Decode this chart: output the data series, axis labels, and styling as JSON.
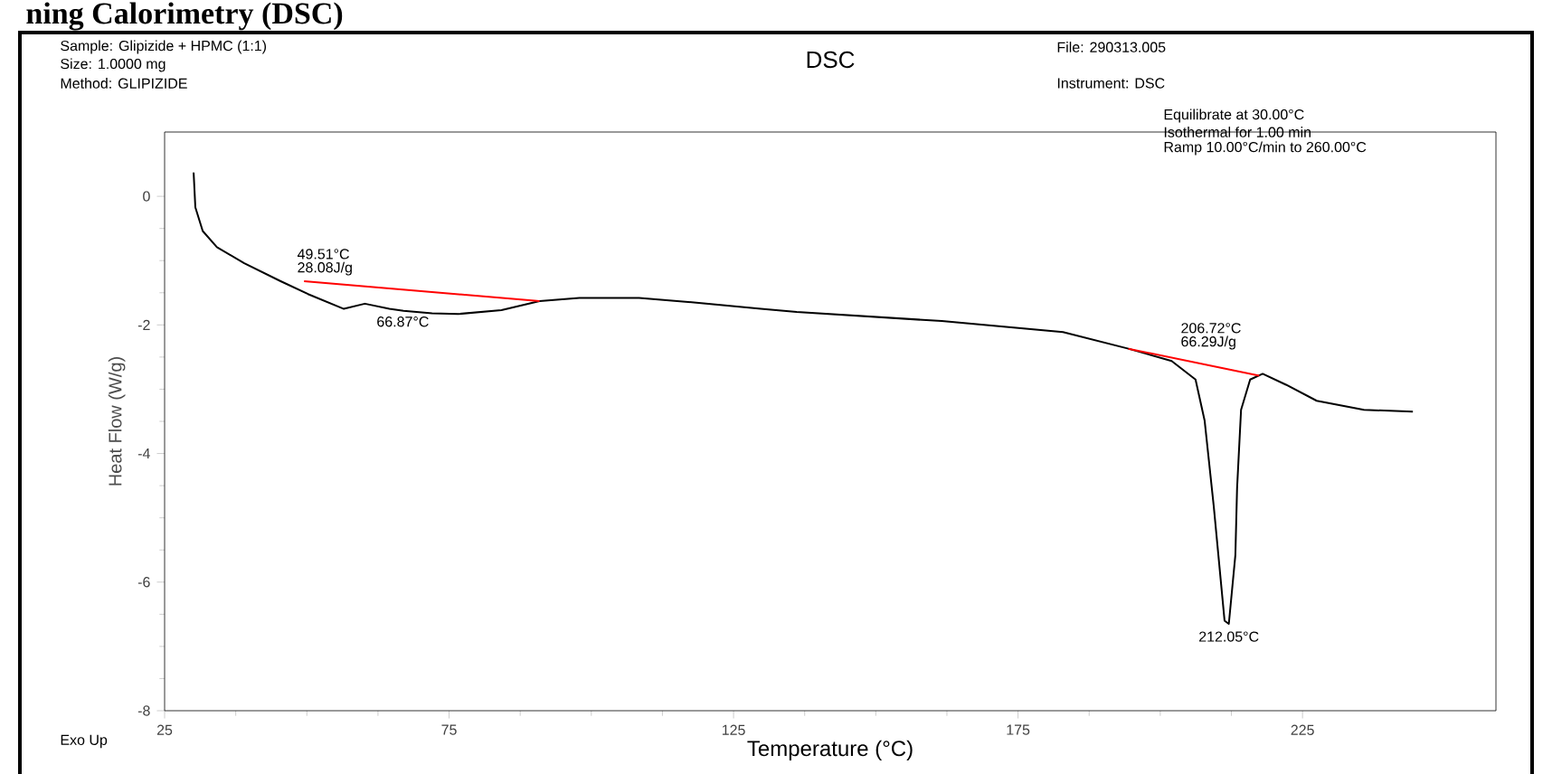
{
  "chart_data": {
    "type": "line",
    "title": "DSC",
    "xlabel": "Temperature (°C)",
    "ylabel": "Heat Flow (W/g)",
    "xlim": [
      25,
      259
    ],
    "ylim": [
      -8,
      1
    ],
    "xticks": [
      25,
      75,
      125,
      175,
      225
    ],
    "yticks": [
      0,
      -2,
      -4,
      -6,
      -8
    ],
    "grid": false,
    "marker": "none",
    "line_style": "solid",
    "series": [
      {
        "color": "#000000",
        "x": [
          30.1,
          30.4,
          31.7,
          34.2,
          39,
          45.4,
          50.2,
          56.5,
          60.2,
          64.5,
          67,
          72,
          76.6,
          84.2,
          90.9,
          97.9,
          108.4,
          119.3,
          129.8,
          136.1,
          161.6,
          182.9,
          194.4,
          202,
          206.2,
          207.8,
          209.4,
          211.3,
          212.05,
          213.2,
          213.5,
          214.2,
          215.8,
          218,
          222.1,
          227.5,
          235.8,
          244.4
        ],
        "values": [
          0.37,
          -0.17,
          -0.54,
          -0.79,
          -1.04,
          -1.32,
          -1.52,
          -1.75,
          -1.67,
          -1.75,
          -1.78,
          -1.82,
          -1.83,
          -1.77,
          -1.63,
          -1.58,
          -1.58,
          -1.66,
          -1.75,
          -1.8,
          -1.94,
          -2.11,
          -2.37,
          -2.56,
          -2.85,
          -3.49,
          -4.82,
          -6.6,
          -6.65,
          -5.58,
          -4.54,
          -3.32,
          -2.85,
          -2.76,
          -2.93,
          -3.18,
          -3.32,
          -3.35
        ]
      },
      {
        "color": "#ff0000",
        "x": [
          49.51,
          90.9
        ],
        "values": [
          -1.32,
          -1.63
        ]
      },
      {
        "color": "#ff0000",
        "x": [
          194.4,
          217.4
        ],
        "values": [
          -2.37,
          -2.79
        ]
      }
    ],
    "annotations": [
      "ning Calorimetry (DSC)",
      "Sample: Glipizide + HPMC (1:1)",
      "Size:  1.0000 mg",
      "Method: GLIPIZIDE",
      "File: 290313.005",
      "Instrument: DSC",
      "Equilibrate at 30.00°C",
      "Isothermal for 1.00 min",
      "Ramp 10.00°C/min to 260.00°C",
      "Exo Up",
      {
        "text": "49.51°C",
        "x": 49.51,
        "y": -1.32
      },
      {
        "text": "28.08J/g",
        "x": 49.51,
        "y": -1.32
      },
      {
        "text": "66.87°C",
        "x": 66.87,
        "y": -1.78
      },
      {
        "text": "206.72°C",
        "x": 206.72,
        "y": -2.5
      },
      {
        "text": "66.29J/g",
        "x": 206.72,
        "y": -2.5
      },
      {
        "text": "212.05°C",
        "x": 212.05,
        "y": -6.65
      }
    ]
  }
}
